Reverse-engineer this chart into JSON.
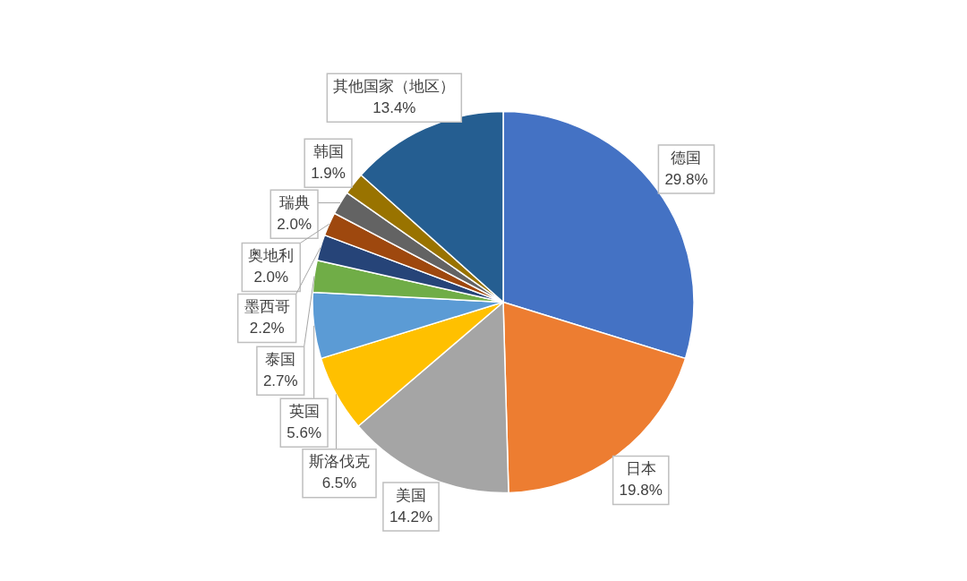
{
  "chart_data": {
    "type": "pie",
    "categories": [
      "德国",
      "日本",
      "美国",
      "斯洛伐克",
      "英国",
      "泰国",
      "墨西哥",
      "奥地利",
      "瑞典",
      "韩国",
      "其他国家（地区）"
    ],
    "values": [
      29.8,
      19.8,
      14.2,
      6.5,
      5.6,
      2.7,
      2.2,
      2.0,
      2.0,
      1.9,
      13.4
    ],
    "value_labels": [
      "29.8%",
      "19.8%",
      "14.2%",
      "6.5%",
      "5.6%",
      "2.7%",
      "2.2%",
      "2.0%",
      "2.0%",
      "1.9%",
      "13.4%"
    ],
    "colors": [
      "#4472c4",
      "#ed7d31",
      "#a5a5a5",
      "#ffc000",
      "#5b9bd5",
      "#70ad47",
      "#264478",
      "#9e480e",
      "#636363",
      "#997300",
      "#255e91"
    ]
  }
}
